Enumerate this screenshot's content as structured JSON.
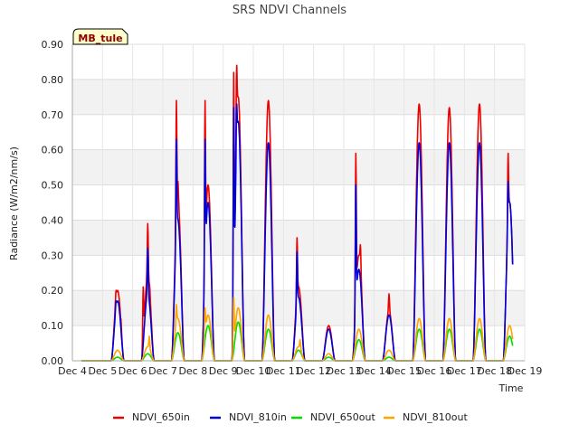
{
  "chart_data": {
    "type": "line",
    "title": "SRS NDVI Channels",
    "xlabel": "Time",
    "ylabel": "Radiance (W/m2/nm/s)",
    "site_badge": "MB_tule",
    "ylim": [
      0,
      0.9
    ],
    "xlim": [
      0,
      15
    ],
    "yticks": [
      0.0,
      0.1,
      0.2,
      0.3,
      0.4,
      0.5,
      0.6,
      0.7,
      0.8,
      0.9
    ],
    "ytick_labels": [
      "0.00",
      "0.10",
      "0.20",
      "0.30",
      "0.40",
      "0.50",
      "0.60",
      "0.70",
      "0.80",
      "0.90"
    ],
    "xticks": [
      0,
      1,
      2,
      3,
      4,
      5,
      6,
      7,
      8,
      9,
      10,
      11,
      12,
      13,
      14,
      15
    ],
    "xtick_labels": [
      "Dec 4",
      "Dec 5",
      "Dec 6",
      "Dec 7",
      "Dec 8",
      "Dec 9",
      "Dec 10",
      "Dec 11",
      "Dec 12",
      "Dec 13",
      "Dec 14",
      "Dec 15",
      "Dec 16",
      "Dec 17",
      "Dec 18",
      "Dec 19"
    ],
    "grid": true,
    "legend_position": "bottom",
    "x_units": "days after Dec 4 00:00",
    "series": [
      {
        "name": "NDVI_650in",
        "color": "#ee0000",
        "days": [
          {
            "d": 1,
            "peak": 0.2,
            "spikes": [
              [
                0.45,
                0.2
              ],
              [
                0.55,
                0.13
              ],
              [
                0.6,
                0.12
              ]
            ]
          },
          {
            "d": 2,
            "peak": 0.24,
            "spikes": [
              [
                0.35,
                0.21
              ],
              [
                0.5,
                0.39
              ],
              [
                0.55,
                0.22
              ]
            ]
          },
          {
            "d": 3,
            "peak": 0.45,
            "spikes": [
              [
                0.45,
                0.74
              ],
              [
                0.5,
                0.51
              ]
            ]
          },
          {
            "d": 4,
            "peak": 0.5,
            "spikes": [
              [
                0.4,
                0.74
              ],
              [
                0.5,
                0.26
              ]
            ]
          },
          {
            "d": 5,
            "peak": 0.75,
            "spikes": [
              [
                0.35,
                0.82
              ],
              [
                0.45,
                0.84
              ]
            ]
          },
          {
            "d": 6,
            "peak": 0.74,
            "spikes": []
          },
          {
            "d": 7,
            "peak": 0.21,
            "spikes": [
              [
                0.45,
                0.35
              ]
            ]
          },
          {
            "d": 8,
            "peak": 0.1,
            "spikes": []
          },
          {
            "d": 9,
            "peak": 0.3,
            "spikes": [
              [
                0.4,
                0.59
              ],
              [
                0.55,
                0.33
              ]
            ]
          },
          {
            "d": 10,
            "peak": 0.14,
            "spikes": [
              [
                0.5,
                0.19
              ]
            ]
          },
          {
            "d": 11,
            "peak": 0.73,
            "spikes": []
          },
          {
            "d": 12,
            "peak": 0.72,
            "spikes": []
          },
          {
            "d": 13,
            "peak": 0.73,
            "spikes": []
          },
          {
            "d": 14,
            "peak": 0.45,
            "spikes": [
              [
                0.45,
                0.59
              ],
              [
                0.55,
                0.25
              ]
            ]
          }
        ]
      },
      {
        "name": "NDVI_810in",
        "color": "#0000dd",
        "days": [
          {
            "d": 1,
            "peak": 0.17,
            "spikes": [
              [
                0.45,
                0.17
              ]
            ]
          },
          {
            "d": 2,
            "peak": 0.19,
            "spikes": [
              [
                0.5,
                0.32
              ]
            ]
          },
          {
            "d": 3,
            "peak": 0.4,
            "spikes": [
              [
                0.45,
                0.63
              ]
            ]
          },
          {
            "d": 4,
            "peak": 0.45,
            "spikes": [
              [
                0.4,
                0.63
              ]
            ]
          },
          {
            "d": 5,
            "peak": 0.68,
            "spikes": [
              [
                0.35,
                0.72
              ],
              [
                0.45,
                0.73
              ]
            ]
          },
          {
            "d": 6,
            "peak": 0.62,
            "spikes": []
          },
          {
            "d": 7,
            "peak": 0.18,
            "spikes": [
              [
                0.45,
                0.31
              ]
            ]
          },
          {
            "d": 8,
            "peak": 0.09,
            "spikes": []
          },
          {
            "d": 9,
            "peak": 0.26,
            "spikes": [
              [
                0.4,
                0.5
              ]
            ]
          },
          {
            "d": 10,
            "peak": 0.13,
            "spikes": []
          },
          {
            "d": 11,
            "peak": 0.62,
            "spikes": []
          },
          {
            "d": 12,
            "peak": 0.62,
            "spikes": []
          },
          {
            "d": 13,
            "peak": 0.62,
            "spikes": []
          },
          {
            "d": 14,
            "peak": 0.45,
            "spikes": [
              [
                0.45,
                0.51
              ]
            ]
          }
        ]
      },
      {
        "name": "NDVI_650out",
        "color": "#00dd00",
        "days": [
          {
            "d": 1,
            "peak": 0.01,
            "spikes": []
          },
          {
            "d": 2,
            "peak": 0.02,
            "spikes": []
          },
          {
            "d": 3,
            "peak": 0.08,
            "spikes": []
          },
          {
            "d": 4,
            "peak": 0.1,
            "spikes": []
          },
          {
            "d": 5,
            "peak": 0.11,
            "spikes": []
          },
          {
            "d": 6,
            "peak": 0.09,
            "spikes": []
          },
          {
            "d": 7,
            "peak": 0.03,
            "spikes": []
          },
          {
            "d": 8,
            "peak": 0.01,
            "spikes": []
          },
          {
            "d": 9,
            "peak": 0.06,
            "spikes": []
          },
          {
            "d": 10,
            "peak": 0.01,
            "spikes": []
          },
          {
            "d": 11,
            "peak": 0.09,
            "spikes": []
          },
          {
            "d": 12,
            "peak": 0.09,
            "spikes": []
          },
          {
            "d": 13,
            "peak": 0.09,
            "spikes": []
          },
          {
            "d": 14,
            "peak": 0.07,
            "spikes": []
          }
        ]
      },
      {
        "name": "NDVI_810out",
        "color": "#ffa500",
        "days": [
          {
            "d": 1,
            "peak": 0.03,
            "spikes": []
          },
          {
            "d": 2,
            "peak": 0.04,
            "spikes": [
              [
                0.55,
                0.07
              ]
            ]
          },
          {
            "d": 3,
            "peak": 0.12,
            "spikes": [
              [
                0.45,
                0.16
              ]
            ]
          },
          {
            "d": 4,
            "peak": 0.13,
            "spikes": [
              [
                0.4,
                0.15
              ]
            ]
          },
          {
            "d": 5,
            "peak": 0.15,
            "spikes": [
              [
                0.35,
                0.18
              ],
              [
                0.5,
                0.15
              ]
            ]
          },
          {
            "d": 6,
            "peak": 0.13,
            "spikes": []
          },
          {
            "d": 7,
            "peak": 0.04,
            "spikes": [
              [
                0.55,
                0.06
              ]
            ]
          },
          {
            "d": 8,
            "peak": 0.02,
            "spikes": []
          },
          {
            "d": 9,
            "peak": 0.09,
            "spikes": []
          },
          {
            "d": 10,
            "peak": 0.03,
            "spikes": []
          },
          {
            "d": 11,
            "peak": 0.12,
            "spikes": []
          },
          {
            "d": 12,
            "peak": 0.12,
            "spikes": []
          },
          {
            "d": 13,
            "peak": 0.12,
            "spikes": []
          },
          {
            "d": 14,
            "peak": 0.1,
            "spikes": []
          }
        ]
      }
    ]
  }
}
